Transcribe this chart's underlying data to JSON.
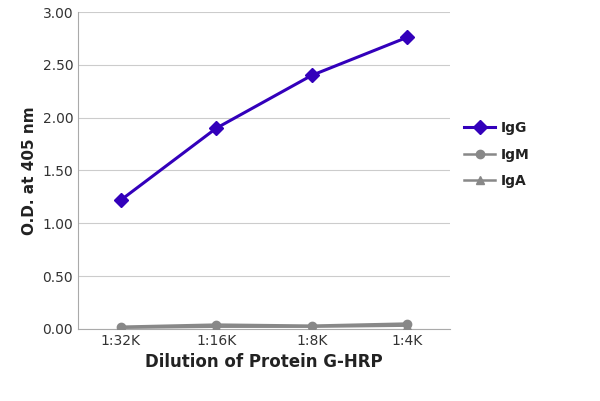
{
  "x_labels": [
    "1:32K",
    "1:16K",
    "1:8K",
    "1:4K"
  ],
  "x_values": [
    1,
    2,
    3,
    4
  ],
  "IgG_values": [
    1.22,
    1.9,
    2.4,
    2.76
  ],
  "IgM_values": [
    0.02,
    0.04,
    0.03,
    0.05
  ],
  "IgA_values": [
    0.01,
    0.02,
    0.02,
    0.03
  ],
  "IgG_color": "#3300BB",
  "IgM_color": "#888888",
  "IgA_color": "#888888",
  "xlabel": "Dilution of Protein G-HRP",
  "ylabel": "O.D. at 405 nm",
  "ylim": [
    0.0,
    3.0
  ],
  "yticks": [
    0.0,
    0.5,
    1.0,
    1.5,
    2.0,
    2.5,
    3.0
  ],
  "background_color": "#ffffff",
  "plot_bg_color": "#ffffff",
  "grid_color": "#cccccc",
  "xlabel_fontsize": 12,
  "ylabel_fontsize": 11,
  "tick_fontsize": 10,
  "legend_fontsize": 10
}
